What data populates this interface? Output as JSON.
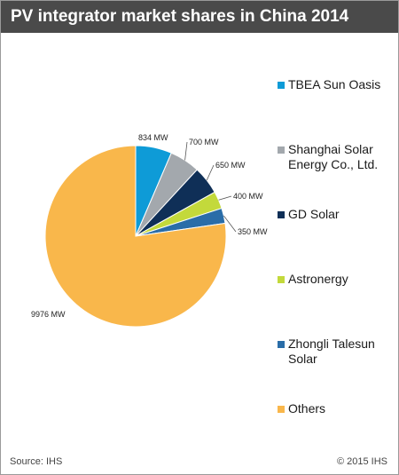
{
  "header": {
    "title": "PV integrator market shares in China 2014"
  },
  "footer": {
    "source": "Source: IHS",
    "copyright": "© 2015 IHS"
  },
  "chart_data": {
    "type": "pie",
    "title": "PV integrator market shares in China 2014",
    "unit": "MW",
    "legend_position": "right",
    "slices": [
      {
        "name": "TBEA Sun Oasis",
        "value": 834,
        "label": "834 MW",
        "color": "#0e9bd7"
      },
      {
        "name": "Shanghai Solar Energy Co., Ltd.",
        "value": 700,
        "label": "700 MW",
        "color": "#a3a8ad"
      },
      {
        "name": "GD Solar",
        "value": 650,
        "label": "650 MW",
        "color": "#0f2f57"
      },
      {
        "name": "Astronergy",
        "value": 400,
        "label": "400 MW",
        "color": "#c3d93b"
      },
      {
        "name": "Zhongli Talesun Solar",
        "value": 350,
        "label": "350 MW",
        "color": "#2a6da8"
      },
      {
        "name": "Others",
        "value": 9976,
        "label": "9976 MW",
        "color": "#f9b74b"
      }
    ]
  }
}
